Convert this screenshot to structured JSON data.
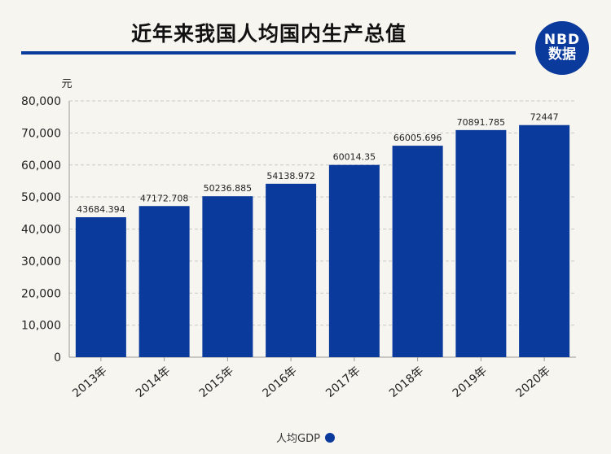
{
  "header": {
    "title": "近年来我国人均国内生产总值",
    "logo_line1": "NBD",
    "logo_line2": "数据"
  },
  "chart_data": {
    "type": "bar",
    "unit_label": "元",
    "categories": [
      "2013年",
      "2014年",
      "2015年",
      "2016年",
      "2017年",
      "2018年",
      "2019年",
      "2020年"
    ],
    "series": [
      {
        "name": "人均GDP",
        "values": [
          43684.394,
          47172.708,
          50236.885,
          54138.972,
          60014.35,
          66005.696,
          70891.785,
          72447
        ],
        "value_labels": [
          "43684.394",
          "47172.708",
          "50236.885",
          "54138.972",
          "60014.35",
          "66005.696",
          "70891.785",
          "72447"
        ]
      }
    ],
    "ylim": [
      0,
      80000
    ],
    "yticks": [
      0,
      10000,
      20000,
      30000,
      40000,
      50000,
      60000,
      70000,
      80000
    ],
    "ytick_labels": [
      "0",
      "10,000",
      "20,000",
      "30,000",
      "40,000",
      "50,000",
      "60,000",
      "70,000",
      "80,000"
    ],
    "grid": true,
    "legend": "bottom-center",
    "bar_color": "#0a3a9c"
  }
}
